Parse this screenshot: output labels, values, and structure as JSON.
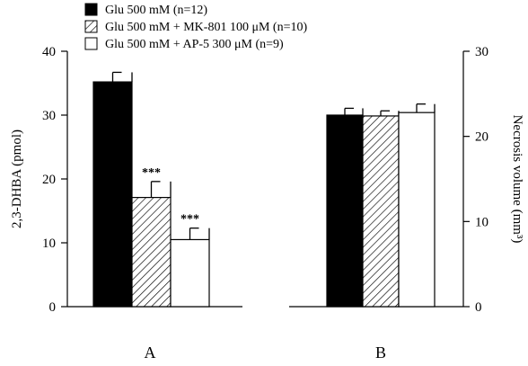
{
  "legend": [
    {
      "label": "Glu 500 mM (n=12)",
      "fill": "black"
    },
    {
      "label": "Glu 500 mM + MK-801 100 μM (n=10)",
      "fill": "hatched"
    },
    {
      "label": "Glu 500 mM + AP-5 300 μM (n=9)",
      "fill": "white"
    }
  ],
  "colors": {
    "solid": "#000000",
    "background": "#ffffff",
    "stroke": "#000000"
  },
  "chart_data": [
    {
      "type": "bar",
      "panel_label": "A",
      "ylabel": "2,3-DHBA (pmol)",
      "ylim": [
        0,
        40
      ],
      "yticks": [
        0,
        10,
        20,
        30,
        40
      ],
      "series": [
        {
          "name": "Glu 500 mM (n=12)",
          "value": 35.2,
          "error": 1.5,
          "fill": "black",
          "annotation": ""
        },
        {
          "name": "Glu 500 mM + MK-801 100 μM (n=10)",
          "value": 17.1,
          "error": 2.5,
          "fill": "hatched",
          "annotation": "***"
        },
        {
          "name": "Glu 500 mM + AP-5 300 μM (n=9)",
          "value": 10.5,
          "error": 1.8,
          "fill": "white",
          "annotation": "***"
        }
      ]
    },
    {
      "type": "bar",
      "panel_label": "B",
      "ylabel": "Necrosis volume (mm³)",
      "ylim": [
        0,
        30
      ],
      "yticks": [
        0,
        10,
        20,
        30
      ],
      "yaxis_side": "right",
      "series": [
        {
          "name": "Glu 500 mM (n=12)",
          "value": 22.5,
          "error": 0.8,
          "fill": "black",
          "annotation": ""
        },
        {
          "name": "Glu 500 mM + MK-801 100 μM (n=10)",
          "value": 22.4,
          "error": 0.6,
          "fill": "hatched",
          "annotation": ""
        },
        {
          "name": "Glu 500 mM + AP-5 300 μM (n=9)",
          "value": 22.8,
          "error": 1.0,
          "fill": "white",
          "annotation": ""
        }
      ]
    }
  ]
}
